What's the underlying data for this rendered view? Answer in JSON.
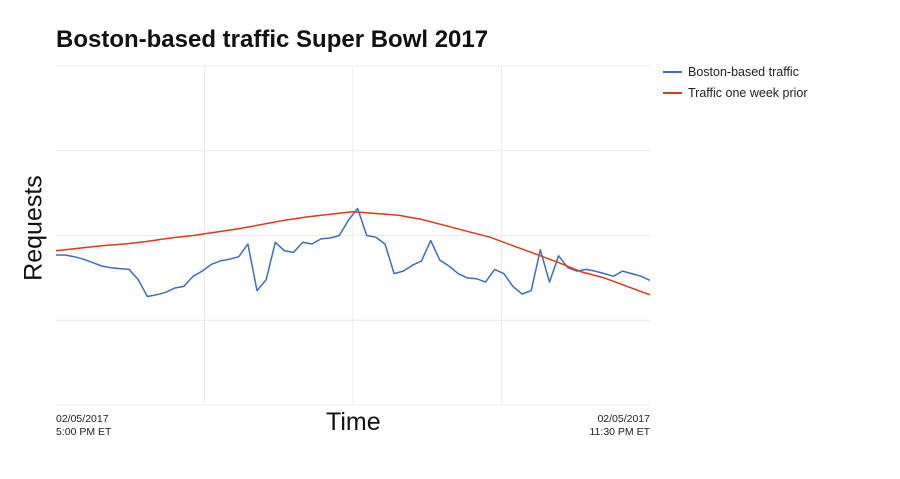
{
  "chart_data": {
    "type": "line",
    "title": "Boston-based traffic Super Bowl 2017",
    "xlabel": "Time",
    "ylabel": "Requests",
    "x_tick_labels": [
      {
        "date": "02/05/2017",
        "time": "5:00 PM ET"
      },
      {
        "date": "02/05/2017",
        "time": "11:30 PM ET"
      }
    ],
    "x_range": [
      "02/05/2017 5:00 PM ET",
      "02/05/2017 11:30 PM ET"
    ],
    "y_range": [
      0,
      4
    ],
    "grid": true,
    "legend_position": "top-right",
    "series": [
      {
        "name": "Boston-based traffic",
        "color": "#3b6ec1",
        "x": [
          0.0,
          0.1,
          0.2,
          0.3,
          0.4,
          0.5,
          0.6,
          0.7,
          0.8,
          0.9,
          1.0,
          1.1,
          1.2,
          1.3,
          1.4,
          1.5,
          1.6,
          1.7,
          1.8,
          1.9,
          2.0,
          2.1,
          2.2,
          2.3,
          2.4,
          2.5,
          2.6,
          2.7,
          2.8,
          2.9,
          3.0,
          3.1,
          3.2,
          3.3,
          3.4,
          3.5,
          3.6,
          3.7,
          3.8,
          3.9,
          4.0,
          4.1,
          4.2,
          4.3,
          4.4,
          4.5,
          4.6,
          4.7,
          4.8,
          4.9,
          5.0,
          5.1,
          5.2,
          5.3,
          5.4,
          5.5,
          5.6,
          5.7,
          5.8,
          5.9,
          6.0,
          6.1,
          6.2,
          6.3,
          6.4,
          6.5
        ],
        "values": [
          1.77,
          1.77,
          1.75,
          1.72,
          1.68,
          1.64,
          1.62,
          1.61,
          1.6,
          1.48,
          1.28,
          1.3,
          1.33,
          1.38,
          1.4,
          1.52,
          1.58,
          1.66,
          1.7,
          1.72,
          1.75,
          1.9,
          1.35,
          1.48,
          1.92,
          1.82,
          1.8,
          1.92,
          1.9,
          1.96,
          1.97,
          2.0,
          2.18,
          2.32,
          2.0,
          1.98,
          1.9,
          1.55,
          1.58,
          1.65,
          1.7,
          1.94,
          1.71,
          1.64,
          1.55,
          1.5,
          1.49,
          1.45,
          1.6,
          1.55,
          1.4,
          1.31,
          1.35,
          1.83,
          1.45,
          1.76,
          1.62,
          1.58,
          1.6,
          1.58,
          1.55,
          1.52,
          1.58,
          1.55,
          1.52,
          1.47
        ]
      },
      {
        "name": "Traffic one week prior",
        "color": "#dd3a1c",
        "x": [
          0.0,
          0.25,
          0.5,
          0.75,
          1.0,
          1.25,
          1.5,
          1.75,
          2.0,
          2.25,
          2.5,
          2.75,
          3.0,
          3.25,
          3.5,
          3.75,
          4.0,
          4.25,
          4.5,
          4.75,
          5.0,
          5.25,
          5.5,
          5.75,
          6.0,
          6.25,
          6.5
        ],
        "values": [
          1.82,
          1.85,
          1.88,
          1.9,
          1.93,
          1.97,
          2.0,
          2.04,
          2.08,
          2.13,
          2.18,
          2.22,
          2.25,
          2.28,
          2.26,
          2.24,
          2.19,
          2.12,
          2.05,
          1.98,
          1.88,
          1.78,
          1.68,
          1.57,
          1.5,
          1.4,
          1.3
        ]
      }
    ]
  }
}
